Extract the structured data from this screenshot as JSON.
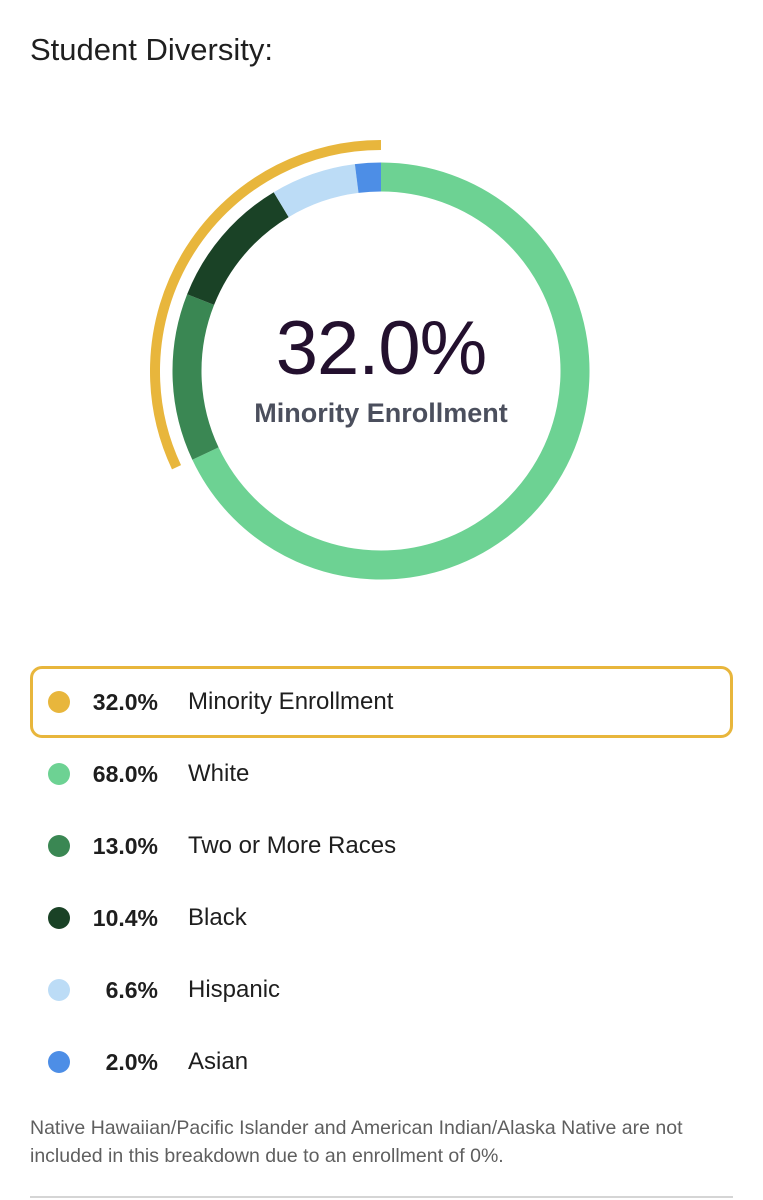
{
  "title": "Student Diversity:",
  "summary": {
    "value": "32.0%",
    "label": "Minority Enrollment",
    "color": "#e8b63c"
  },
  "chart_data": {
    "type": "pie",
    "categories": [
      "White",
      "Two or More Races",
      "Black",
      "Hispanic",
      "Asian"
    ],
    "values": [
      68.0,
      13.0,
      10.4,
      6.6,
      2.0
    ],
    "colors": [
      "#6dd293",
      "#3a8753",
      "#1a4226",
      "#bcdcf6",
      "#4d8ee6"
    ],
    "unit": "%",
    "highlight": {
      "label": "Minority Enrollment",
      "value": 32.0,
      "color": "#e8b63c"
    }
  },
  "legend": [
    {
      "pct": "32.0%",
      "label": "Minority Enrollment",
      "color": "#e8b63c"
    },
    {
      "pct": "68.0%",
      "label": "White",
      "color": "#6dd293"
    },
    {
      "pct": "13.0%",
      "label": "Two or More Races",
      "color": "#3a8753"
    },
    {
      "pct": "10.4%",
      "label": "Black",
      "color": "#1a4226"
    },
    {
      "pct": "6.6%",
      "label": "Hispanic",
      "color": "#bcdcf6"
    },
    {
      "pct": "2.0%",
      "label": "Asian",
      "color": "#4d8ee6"
    }
  ],
  "footnote": "Native Hawaiian/Pacific Islander and American Indian/Alaska Native are not included in this breakdown due to an enrollment of 0%."
}
